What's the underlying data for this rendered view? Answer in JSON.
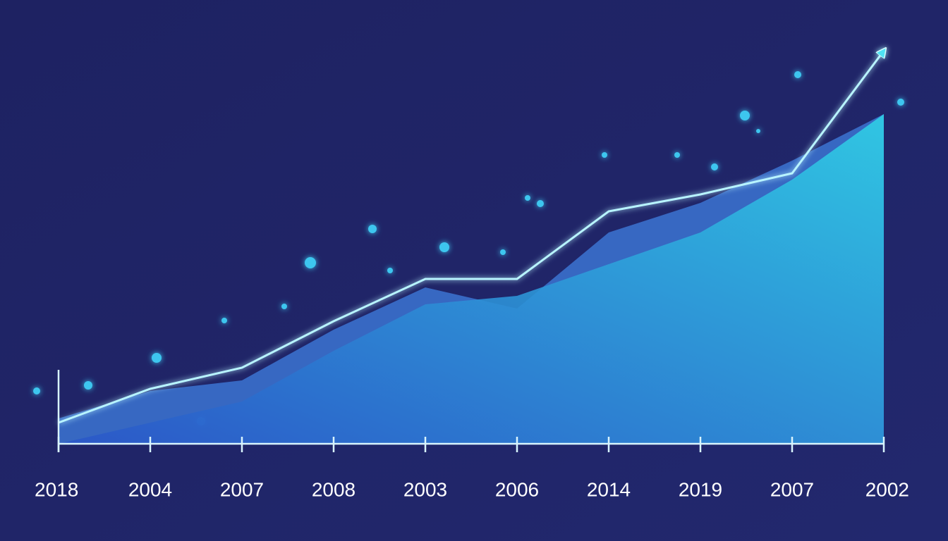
{
  "chart_data": {
    "type": "line",
    "categories": [
      "2018",
      "2004",
      "2007",
      "2008",
      "2003",
      "2006",
      "2014",
      "2019",
      "2007",
      "2002"
    ],
    "ylim": [
      0,
      100
    ],
    "series": [
      {
        "color": "#3f7fe0",
        "area": true,
        "values": [
          6,
          12.5,
          15,
          27,
          37,
          32,
          50,
          57,
          67,
          78
        ]
      },
      {
        "color": "#2fb8e6",
        "area": true,
        "values": [
          0,
          5,
          10,
          22,
          33,
          35,
          42.5,
          50,
          62.5,
          78
        ]
      },
      {
        "color": "#b8f4ff",
        "area": false,
        "arrow": true,
        "values": [
          5,
          13,
          18,
          29,
          39,
          39,
          55,
          59,
          64,
          93
        ]
      }
    ]
  }
}
